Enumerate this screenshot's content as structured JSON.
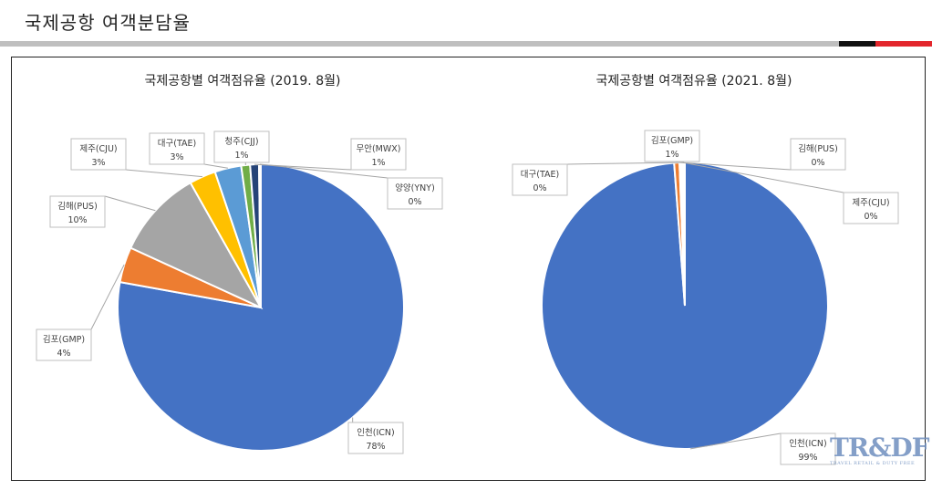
{
  "page": {
    "title": "국제공항 여객분담율"
  },
  "watermark": {
    "main": "TR&DF",
    "sub": "TRAVEL RETAIL & DUTY FREE"
  },
  "chart_data": [
    {
      "type": "pie",
      "title": "국제공항별 여객점유율 (2019. 8월)",
      "slices": [
        {
          "name": "인천(ICN)",
          "value": 78,
          "label": "78%",
          "color": "#4472c4"
        },
        {
          "name": "김포(GMP)",
          "value": 4,
          "label": "4%",
          "color": "#ed7d31"
        },
        {
          "name": "김해(PUS)",
          "value": 10,
          "label": "10%",
          "color": "#a5a5a5"
        },
        {
          "name": "제주(CJU)",
          "value": 3,
          "label": "3%",
          "color": "#ffc000"
        },
        {
          "name": "대구(TAE)",
          "value": 3,
          "label": "3%",
          "color": "#5b9bd5"
        },
        {
          "name": "청주(CJJ)",
          "value": 1,
          "label": "1%",
          "color": "#70ad47"
        },
        {
          "name": "무안(MWX)",
          "value": 1,
          "label": "1%",
          "color": "#264478"
        },
        {
          "name": "양양(YNY)",
          "value": 0.2,
          "label": "0%",
          "color": "#9e480e"
        }
      ]
    },
    {
      "type": "pie",
      "title": "국제공항별 여객점유율 (2021. 8월)",
      "slices": [
        {
          "name": "인천(ICN)",
          "value": 99,
          "label": "99%",
          "color": "#4472c4"
        },
        {
          "name": "김포(GMP)",
          "value": 0.6,
          "label": "1%",
          "color": "#ed7d31"
        },
        {
          "name": "김해(PUS)",
          "value": 0.2,
          "label": "0%",
          "color": "#a5a5a5"
        },
        {
          "name": "제주(CJU)",
          "value": 0.2,
          "label": "0%",
          "color": "#ffc000"
        },
        {
          "name": "대구(TAE)",
          "value": 0.2,
          "label": "0%",
          "color": "#5b9bd5"
        }
      ]
    }
  ]
}
